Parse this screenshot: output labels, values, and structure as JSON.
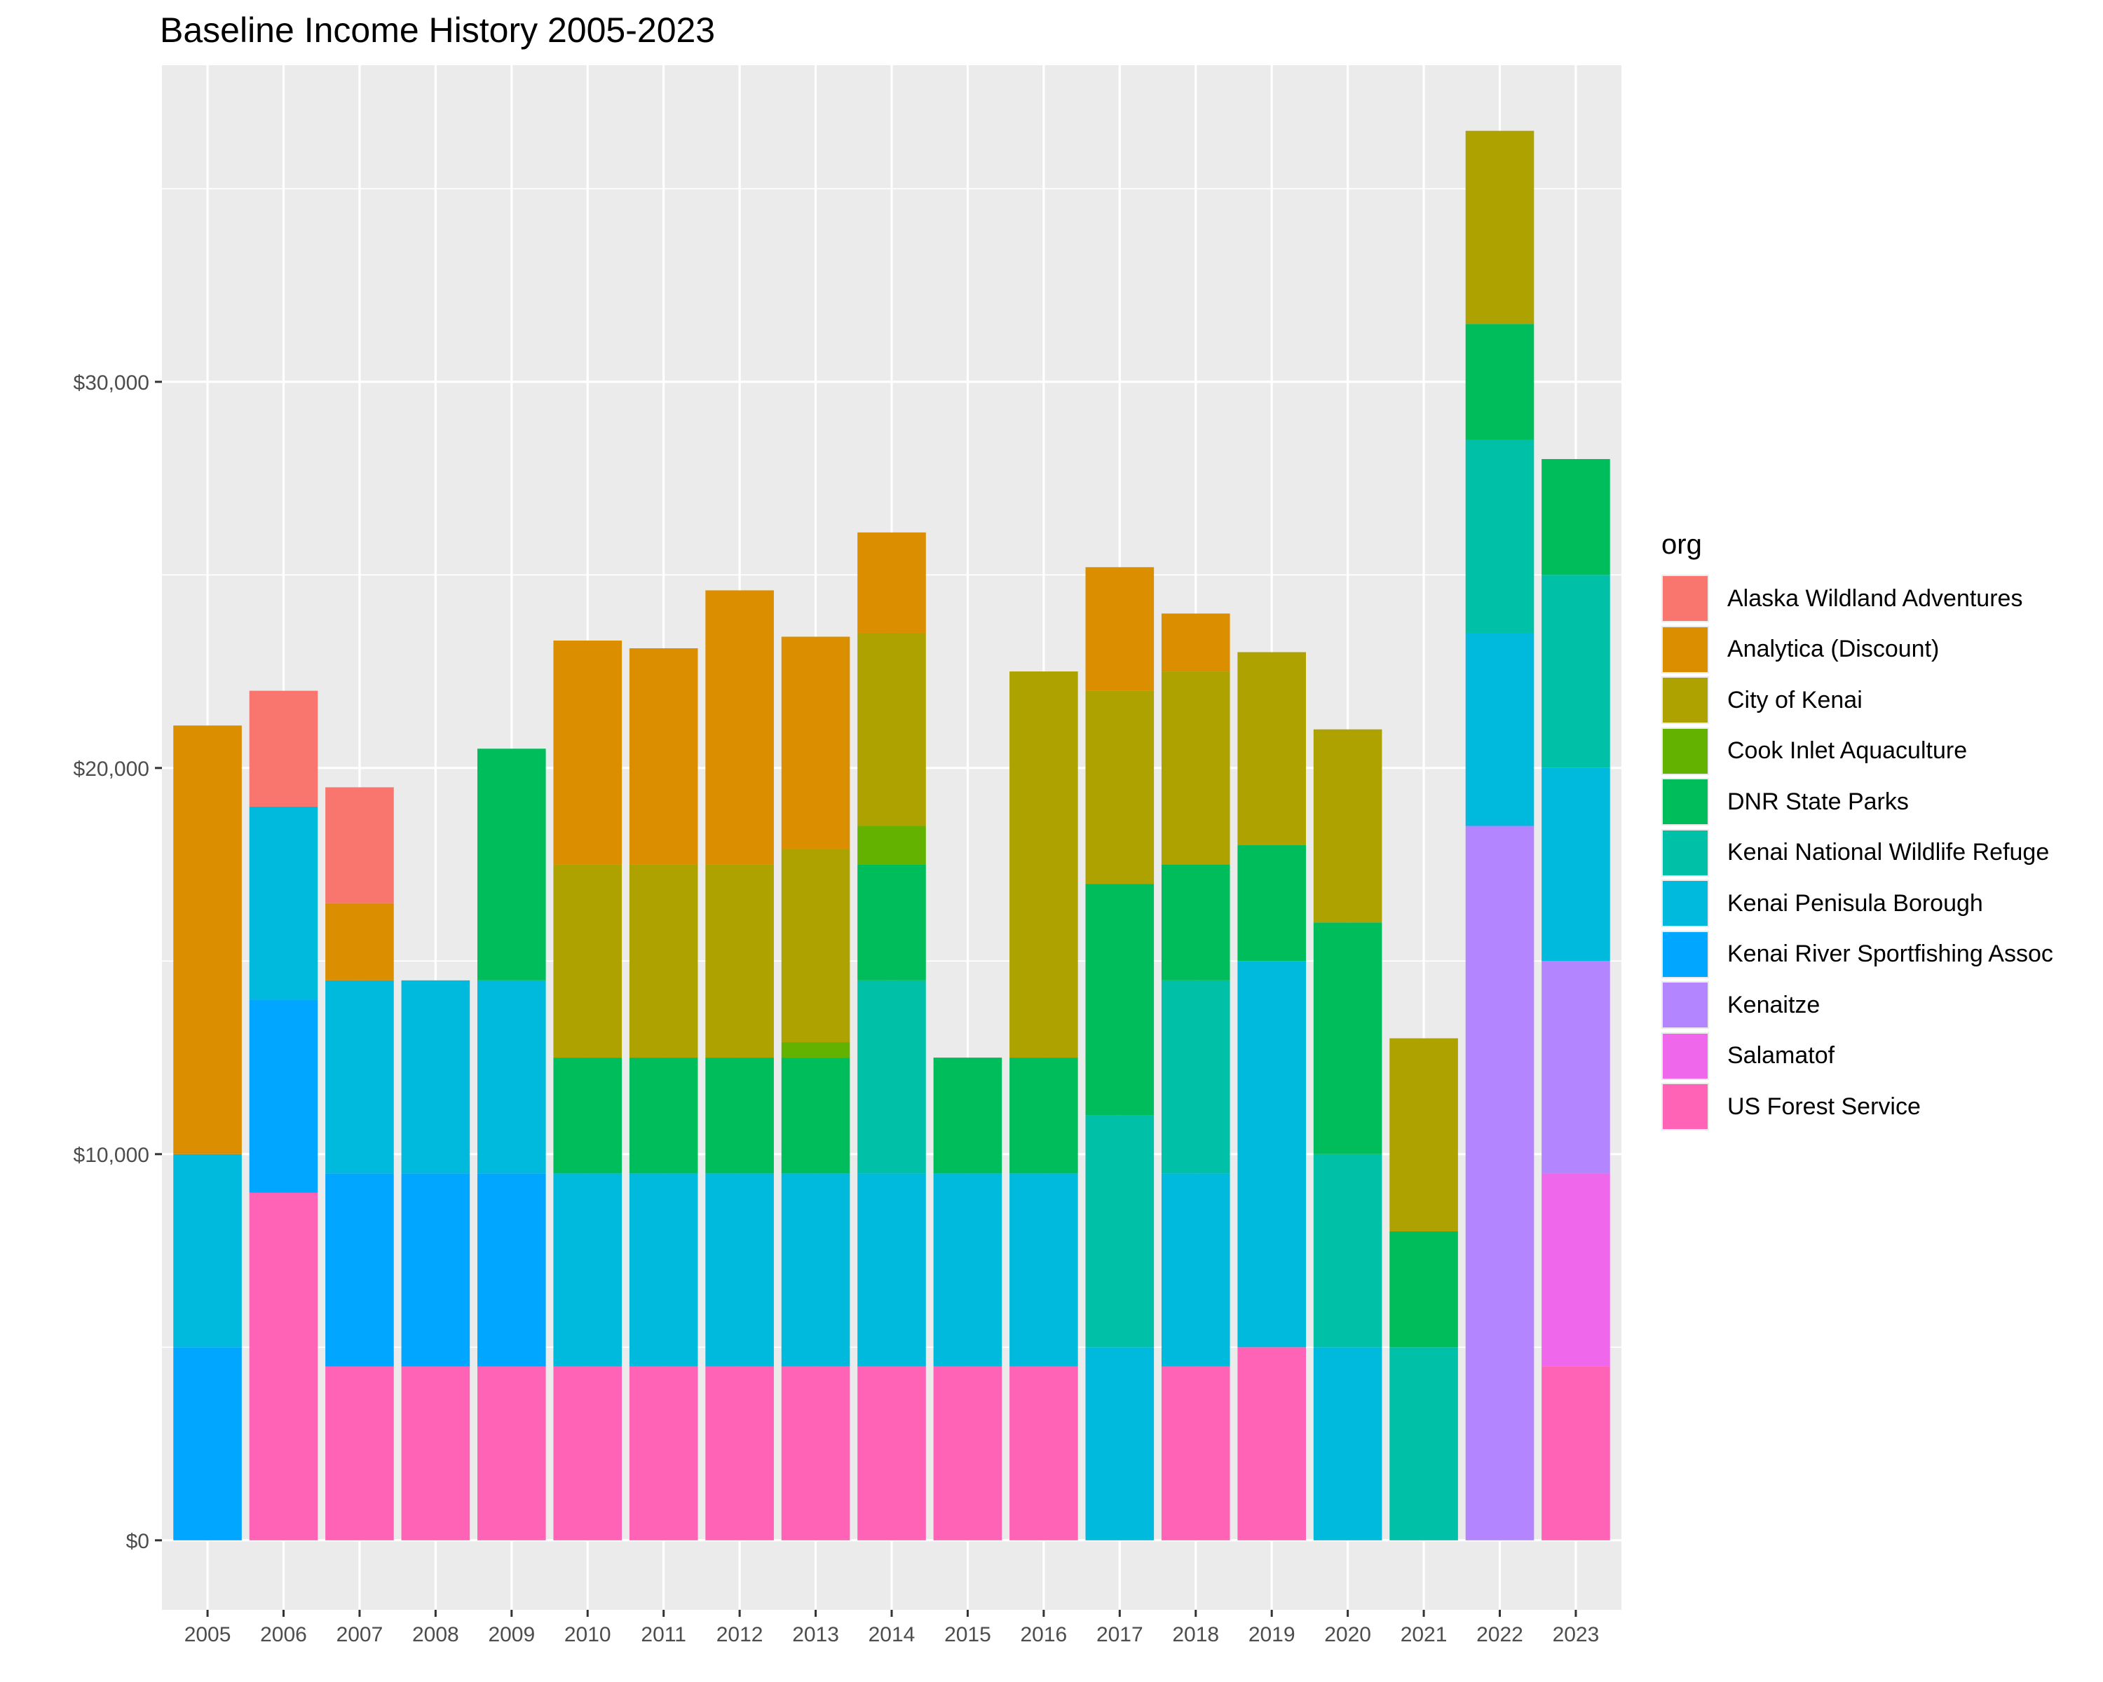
{
  "chart_data": {
    "type": "bar",
    "stacked": true,
    "title": "Baseline Income History 2005-2023",
    "xlabel": "",
    "ylabel": "",
    "ylim": [
      -1800,
      38200
    ],
    "y_ticks": [
      0,
      10000,
      20000,
      30000
    ],
    "y_tick_labels": [
      "$0",
      "$10,000",
      "$20,000",
      "$30,000"
    ],
    "legend_title": "org",
    "legend_position": "right",
    "grid": true,
    "categories": [
      "2005",
      "2006",
      "2007",
      "2008",
      "2009",
      "2010",
      "2011",
      "2012",
      "2013",
      "2014",
      "2015",
      "2016",
      "2017",
      "2018",
      "2019",
      "2020",
      "2021",
      "2022",
      "2023"
    ],
    "series": [
      {
        "name": "Alaska Wildland Adventures",
        "color": "#F8766D",
        "values": [
          0,
          3000,
          3000,
          0,
          0,
          0,
          0,
          0,
          0,
          0,
          0,
          0,
          0,
          0,
          0,
          0,
          0,
          0,
          0
        ]
      },
      {
        "name": "Analytica (Discount)",
        "color": "#DB8E00",
        "values": [
          11100,
          0,
          2000,
          0,
          0,
          5800,
          5600,
          7100,
          5500,
          2600,
          0,
          0,
          3200,
          1500,
          0,
          0,
          0,
          0,
          0
        ]
      },
      {
        "name": "City of Kenai",
        "color": "#AEA200",
        "values": [
          0,
          0,
          0,
          0,
          0,
          5000,
          5000,
          5000,
          5000,
          5000,
          0,
          10000,
          5000,
          5000,
          5000,
          5000,
          5000,
          5000,
          0
        ]
      },
      {
        "name": "Cook Inlet Aquaculture",
        "color": "#64B200",
        "values": [
          0,
          0,
          0,
          0,
          0,
          0,
          0,
          0,
          400,
          1000,
          0,
          0,
          0,
          0,
          0,
          0,
          0,
          0,
          0
        ]
      },
      {
        "name": "DNR State Parks",
        "color": "#00BD5C",
        "values": [
          0,
          0,
          0,
          0,
          6000,
          3000,
          3000,
          3000,
          3000,
          3000,
          3000,
          3000,
          6000,
          3000,
          3000,
          6000,
          3000,
          3000,
          3000
        ]
      },
      {
        "name": "Kenai National Wildlife Refuge",
        "color": "#00C1A7",
        "values": [
          0,
          0,
          0,
          0,
          0,
          0,
          0,
          0,
          0,
          5000,
          0,
          0,
          6000,
          5000,
          0,
          5000,
          5000,
          5000,
          5000
        ]
      },
      {
        "name": "Kenai Penisula Borough",
        "color": "#00BADE",
        "values": [
          5000,
          5000,
          5000,
          5000,
          5000,
          5000,
          5000,
          5000,
          5000,
          5000,
          5000,
          5000,
          5000,
          5000,
          10000,
          5000,
          0,
          5000,
          5000
        ]
      },
      {
        "name": "Kenai River Sportfishing Assoc",
        "color": "#00A6FF",
        "values": [
          5000,
          5000,
          5000,
          5000,
          5000,
          0,
          0,
          0,
          0,
          0,
          0,
          0,
          0,
          0,
          0,
          0,
          0,
          0,
          0
        ]
      },
      {
        "name": "Kenaitze",
        "color": "#B385FF",
        "values": [
          0,
          0,
          0,
          0,
          0,
          0,
          0,
          0,
          0,
          0,
          0,
          0,
          0,
          0,
          0,
          0,
          0,
          18500,
          5500
        ]
      },
      {
        "name": "Salamatof",
        "color": "#EF67EB",
        "values": [
          0,
          0,
          0,
          0,
          0,
          0,
          0,
          0,
          0,
          0,
          0,
          0,
          0,
          0,
          0,
          0,
          0,
          0,
          5000
        ]
      },
      {
        "name": "US Forest Service",
        "color": "#FF63B6",
        "values": [
          0,
          9000,
          4500,
          4500,
          4500,
          4500,
          4500,
          4500,
          4500,
          4500,
          4500,
          4500,
          0,
          4500,
          5000,
          0,
          0,
          0,
          4500
        ]
      }
    ]
  }
}
